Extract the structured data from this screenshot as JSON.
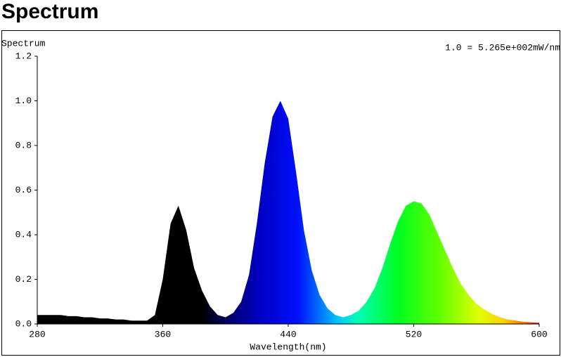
{
  "chart_data": {
    "type": "area",
    "title": "Spectrum",
    "ylabel": "Spectrum",
    "xlabel": "Wavelength(nm)",
    "annotation": "1.0 = 5.265e+002mW/nm",
    "x": [
      280,
      285,
      290,
      295,
      300,
      305,
      310,
      315,
      320,
      325,
      330,
      335,
      340,
      345,
      350,
      355,
      360,
      365,
      370,
      375,
      380,
      385,
      390,
      395,
      400,
      405,
      410,
      415,
      420,
      425,
      430,
      435,
      440,
      445,
      450,
      455,
      460,
      465,
      470,
      475,
      480,
      485,
      490,
      495,
      500,
      505,
      510,
      515,
      520,
      525,
      530,
      535,
      540,
      545,
      550,
      555,
      560,
      565,
      570,
      575,
      580,
      585,
      590,
      595,
      600
    ],
    "values": [
      0.04,
      0.04,
      0.04,
      0.04,
      0.035,
      0.035,
      0.03,
      0.03,
      0.025,
      0.025,
      0.02,
      0.02,
      0.015,
      0.015,
      0.015,
      0.04,
      0.2,
      0.45,
      0.53,
      0.42,
      0.25,
      0.15,
      0.08,
      0.04,
      0.03,
      0.05,
      0.1,
      0.22,
      0.45,
      0.72,
      0.93,
      1.0,
      0.92,
      0.68,
      0.42,
      0.24,
      0.13,
      0.07,
      0.04,
      0.03,
      0.04,
      0.06,
      0.1,
      0.16,
      0.25,
      0.36,
      0.46,
      0.53,
      0.55,
      0.54,
      0.49,
      0.41,
      0.33,
      0.25,
      0.18,
      0.13,
      0.09,
      0.065,
      0.045,
      0.03,
      0.02,
      0.015,
      0.01,
      0.007,
      0.005
    ],
    "xlim": [
      280,
      600
    ],
    "xticks": [
      280,
      360,
      440,
      520,
      600
    ],
    "ylim": [
      0,
      1.2
    ],
    "yticks": [
      {
        "value": 0,
        "label": "0.0"
      },
      0.2,
      0.4,
      0.6,
      0.8,
      {
        "value": 1,
        "label": "1.0"
      },
      1.2
    ]
  }
}
